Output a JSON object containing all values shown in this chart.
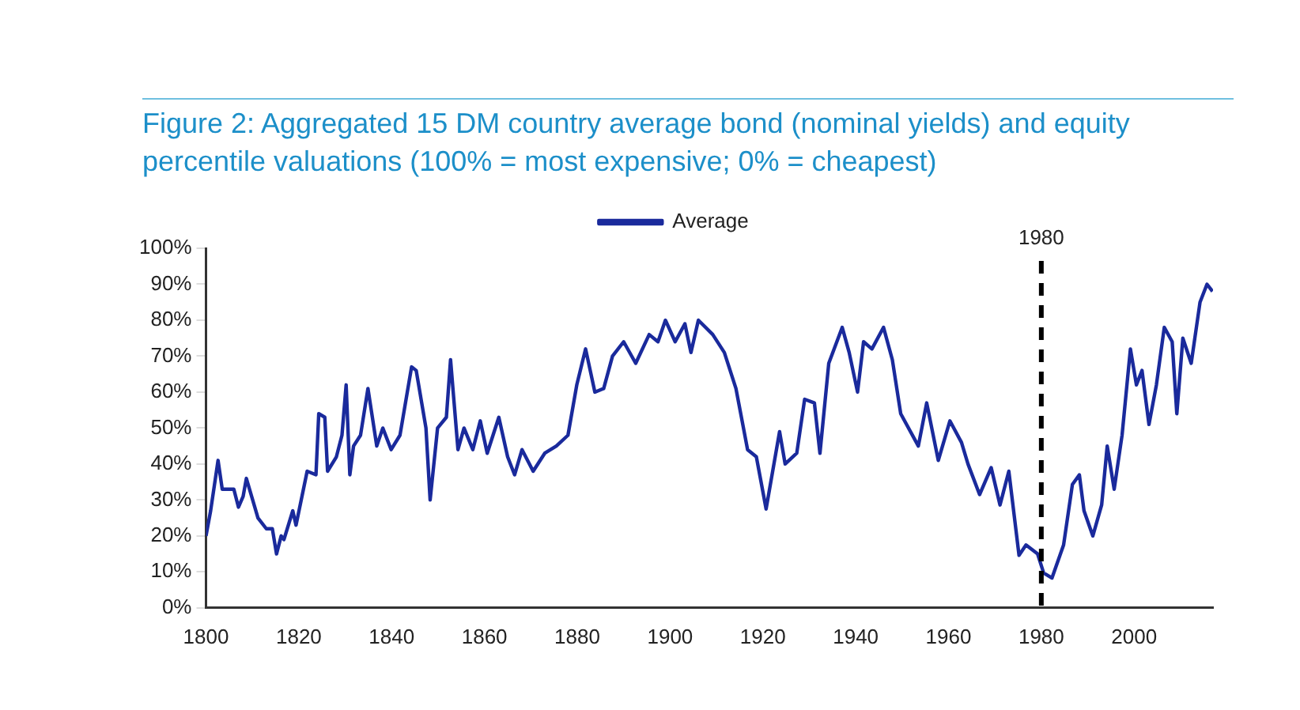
{
  "chart_data": {
    "type": "line",
    "title": "Figure 2: Aggregated 15 DM country average bond (nominal yields) and equity percentile valuations (100% = most expensive; 0% = cheapest)",
    "x": [
      1800,
      1801,
      1802.6,
      1803.5,
      1806,
      1807,
      1808,
      1808.7,
      1811.2,
      1813,
      1814.3,
      1815.2,
      1816.2,
      1816.8,
      1818.7,
      1819.4,
      1821.8,
      1823.7,
      1824.3,
      1825.6,
      1826.2,
      1828.1,
      1829.3,
      1830.2,
      1831,
      1831.8,
      1833.3,
      1834.9,
      1836.8,
      1838.1,
      1839.9,
      1841.8,
      1844.3,
      1845.3,
      1847.4,
      1848.3,
      1849.9,
      1851.8,
      1852.7,
      1854.3,
      1855.6,
      1857.5,
      1859.1,
      1860.6,
      1863.1,
      1865,
      1866.5,
      1868.1,
      1870.5,
      1873,
      1875.5,
      1878,
      1879.9,
      1881.8,
      1883.8,
      1885.7,
      1887.6,
      1890,
      1892.6,
      1895.5,
      1897.4,
      1899,
      1901.1,
      1903.2,
      1904.5,
      1906.1,
      1909.2,
      1911.7,
      1914.2,
      1916.7,
      1918.6,
      1920.7,
      1923.6,
      1924.8,
      1927.3,
      1929,
      1931.1,
      1932.3,
      1934.2,
      1937.1,
      1938.6,
      1940.4,
      1941.7,
      1943.5,
      1946,
      1947.9,
      1949.7,
      1953.5,
      1955.3,
      1957.8,
      1960.3,
      1962.8,
      1964.2,
      1966.7,
      1969.2,
      1971.1,
      1973,
      1975.2,
      1976.7,
      1979.2,
      1980.5,
      1982.3,
      1984.8,
      1986.7,
      1988.2,
      1989.2,
      1991.1,
      1993,
      1994.2,
      1995.7,
      1997.4,
      1999.2,
      2000.5,
      2001.7,
      2003.2,
      2004.8,
      2006.5,
      2008.2,
      2009.2,
      2010.5,
      2012.3,
      2014.2,
      2015.7,
      2016.9
    ],
    "series": [
      {
        "name": "Average",
        "color": "#1a2a9c",
        "values": [
          20,
          27,
          41,
          33,
          33,
          28,
          31,
          36,
          25,
          22,
          22,
          15,
          20,
          19,
          27,
          23,
          38,
          37,
          54,
          53,
          38,
          42,
          48,
          62,
          37,
          45,
          48,
          61,
          45,
          50,
          44,
          48,
          67,
          66,
          50,
          30,
          50,
          53,
          69,
          44,
          50,
          44,
          52,
          43,
          53,
          42,
          37,
          44,
          38,
          43,
          45,
          48,
          62,
          72,
          60,
          61,
          70,
          74,
          68,
          76,
          74,
          80,
          74,
          79,
          71,
          80,
          76,
          71,
          61,
          44,
          42,
          27.5,
          49,
          40,
          43,
          58,
          57,
          43,
          68,
          78,
          71,
          60,
          74,
          72,
          78,
          69,
          54,
          45,
          57,
          41,
          52,
          46,
          40,
          31.5,
          39,
          28.6,
          38,
          14.6,
          17.5,
          15,
          9.7,
          8.3,
          17.5,
          34.3,
          37,
          27,
          20,
          28.6,
          45,
          33,
          48,
          72,
          62,
          66,
          51,
          62,
          78,
          74,
          54,
          75,
          68,
          85,
          90,
          88
        ]
      }
    ],
    "xlim": [
      1800,
      2017
    ],
    "xticks": [
      1800,
      1820,
      1840,
      1860,
      1880,
      1900,
      1920,
      1940,
      1960,
      1980,
      2000
    ],
    "ylim": [
      0,
      100
    ],
    "yticks": [
      {
        "value": 0,
        "label": "0%"
      },
      {
        "value": 10,
        "label": "10%"
      },
      {
        "value": 20,
        "label": "20%"
      },
      {
        "value": 30,
        "label": "30%"
      },
      {
        "value": 40,
        "label": "40%"
      },
      {
        "value": 50,
        "label": "50%"
      },
      {
        "value": 60,
        "label": "60%"
      },
      {
        "value": 70,
        "label": "70%"
      },
      {
        "value": 80,
        "label": "80%"
      },
      {
        "value": 90,
        "label": "90%"
      },
      {
        "value": 100,
        "label": "100%"
      }
    ],
    "ref_lines": [
      {
        "axis": "x",
        "value": 1980,
        "label": "1980",
        "color": "#000000",
        "line_style": "dashed"
      }
    ],
    "grid": false,
    "legend": "top",
    "marker": "none",
    "line_style": "solid"
  }
}
